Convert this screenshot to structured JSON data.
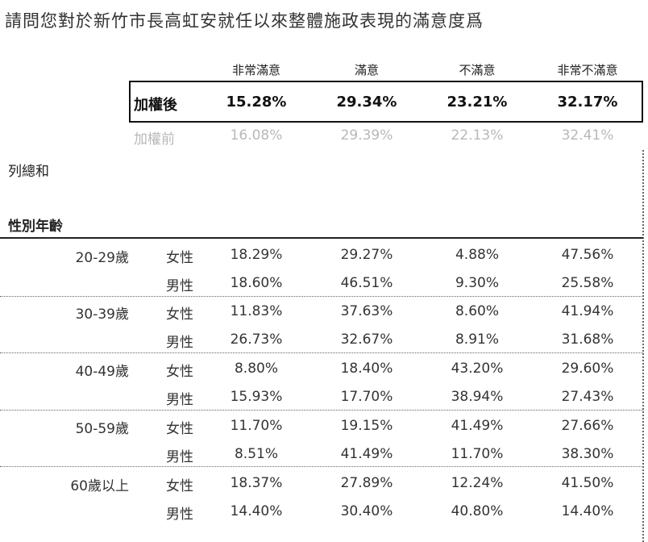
{
  "title": "請問您對於新竹市長高虹安就任以來整體施政表現的滿意度爲",
  "columns": [
    "非常滿意",
    "滿意",
    "不滿意",
    "非常不滿意"
  ],
  "weighted": {
    "label": "加權後",
    "values": [
      "15.28%",
      "29.34%",
      "23.21%",
      "32.17%"
    ]
  },
  "unweighted": {
    "label": "加權前",
    "values": [
      "16.08%",
      "29.39%",
      "22.13%",
      "32.41%"
    ]
  },
  "section_total": "列總和",
  "section_group": "性別年齡",
  "groups": [
    {
      "age": "20-29歲",
      "rows": [
        {
          "sex": "女性",
          "values": [
            "18.29%",
            "29.27%",
            "4.88%",
            "47.56%"
          ]
        },
        {
          "sex": "男性",
          "values": [
            "18.60%",
            "46.51%",
            "9.30%",
            "25.58%"
          ]
        }
      ]
    },
    {
      "age": "30-39歲",
      "rows": [
        {
          "sex": "女性",
          "values": [
            "11.83%",
            "37.63%",
            "8.60%",
            "41.94%"
          ]
        },
        {
          "sex": "男性",
          "values": [
            "26.73%",
            "32.67%",
            "8.91%",
            "31.68%"
          ]
        }
      ]
    },
    {
      "age": "40-49歲",
      "rows": [
        {
          "sex": "女性",
          "values": [
            "8.80%",
            "18.40%",
            "43.20%",
            "29.60%"
          ]
        },
        {
          "sex": "男性",
          "values": [
            "15.93%",
            "17.70%",
            "38.94%",
            "27.43%"
          ]
        }
      ]
    },
    {
      "age": "50-59歲",
      "rows": [
        {
          "sex": "女性",
          "values": [
            "11.70%",
            "19.15%",
            "41.49%",
            "27.66%"
          ]
        },
        {
          "sex": "男性",
          "values": [
            "8.51%",
            "41.49%",
            "11.70%",
            "38.30%"
          ]
        }
      ]
    },
    {
      "age": "60歲以上",
      "rows": [
        {
          "sex": "女性",
          "values": [
            "18.37%",
            "27.89%",
            "12.24%",
            "41.50%"
          ]
        },
        {
          "sex": "男性",
          "values": [
            "14.40%",
            "30.40%",
            "40.80%",
            "14.40%"
          ]
        }
      ]
    }
  ]
}
